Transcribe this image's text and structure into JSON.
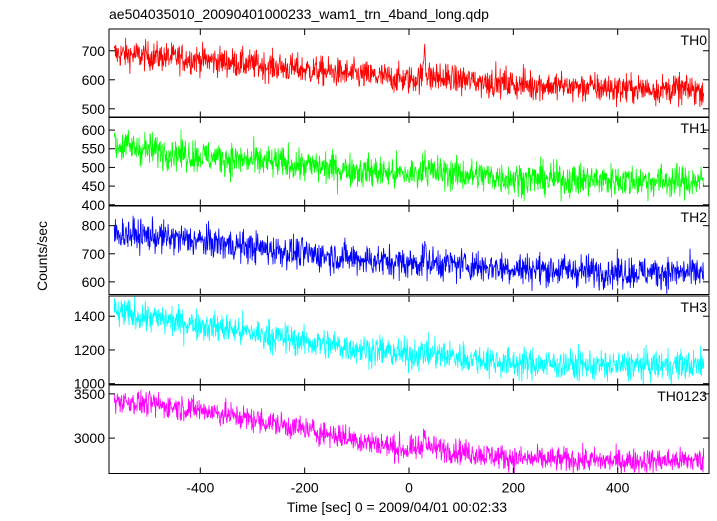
{
  "title": "ae504035010_20090401000233_wam1_trn_4band_long.qdp",
  "chart_data": {
    "type": "line",
    "title": "ae504035010_20090401000233_wam1_trn_4band_long.qdp",
    "xlabel": "Time [sec] 0 = 2009/04/01 00:02:33",
    "ylabel": "Counts/sec",
    "xlim": [
      -575,
      575
    ],
    "x_ticks": [
      -400,
      -200,
      0,
      200,
      400
    ],
    "grid": false,
    "panels": [
      {
        "name": "TH0",
        "color": "#ff0000",
        "ylim": [
          470,
          775
        ],
        "y_ticks": [
          500,
          600,
          700
        ],
        "trend": [
          [
            -565,
            690
          ],
          [
            -400,
            670
          ],
          [
            -200,
            635
          ],
          [
            0,
            600
          ],
          [
            30,
            610
          ],
          [
            200,
            585
          ],
          [
            400,
            570
          ],
          [
            565,
            565
          ]
        ],
        "noise": 25,
        "spikes": [
          [
            30,
            760
          ]
        ]
      },
      {
        "name": "TH1",
        "color": "#00ff00",
        "ylim": [
          398,
          635
        ],
        "y_ticks": [
          400,
          450,
          500,
          550,
          600
        ],
        "trend": [
          [
            -565,
            560
          ],
          [
            -400,
            530
          ],
          [
            -200,
            505
          ],
          [
            0,
            480
          ],
          [
            30,
            490
          ],
          [
            200,
            470
          ],
          [
            400,
            465
          ],
          [
            565,
            462
          ]
        ],
        "noise": 22,
        "spikes": [
          [
            30,
            545
          ]
        ]
      },
      {
        "name": "TH2",
        "color": "#0000ff",
        "ylim": [
          555,
          870
        ],
        "y_ticks": [
          600,
          700,
          800
        ],
        "trend": [
          [
            -565,
            775
          ],
          [
            -400,
            745
          ],
          [
            -200,
            700
          ],
          [
            0,
            665
          ],
          [
            30,
            670
          ],
          [
            200,
            648
          ],
          [
            400,
            635
          ],
          [
            565,
            632
          ]
        ],
        "noise": 28,
        "spikes": [
          [
            30,
            730
          ]
        ]
      },
      {
        "name": "TH3",
        "color": "#00ffff",
        "ylim": [
          995,
          1520
        ],
        "y_ticks": [
          1000,
          1200,
          1400
        ],
        "trend": [
          [
            -565,
            1420
          ],
          [
            -400,
            1350
          ],
          [
            -200,
            1250
          ],
          [
            0,
            1170
          ],
          [
            30,
            1180
          ],
          [
            200,
            1120
          ],
          [
            400,
            1105
          ],
          [
            565,
            1110
          ]
        ],
        "noise": 45,
        "spikes": []
      },
      {
        "name": "TH0123",
        "color": "#ff00ff",
        "ylim": [
          2600,
          3600
        ],
        "y_ticks": [
          3000,
          3500
        ],
        "trend": [
          [
            -565,
            3430
          ],
          [
            -400,
            3320
          ],
          [
            -200,
            3100
          ],
          [
            0,
            2860
          ],
          [
            30,
            2900
          ],
          [
            200,
            2770
          ],
          [
            400,
            2740
          ],
          [
            565,
            2750
          ]
        ],
        "noise": 70,
        "spikes": [
          [
            30,
            3240
          ]
        ]
      }
    ]
  }
}
